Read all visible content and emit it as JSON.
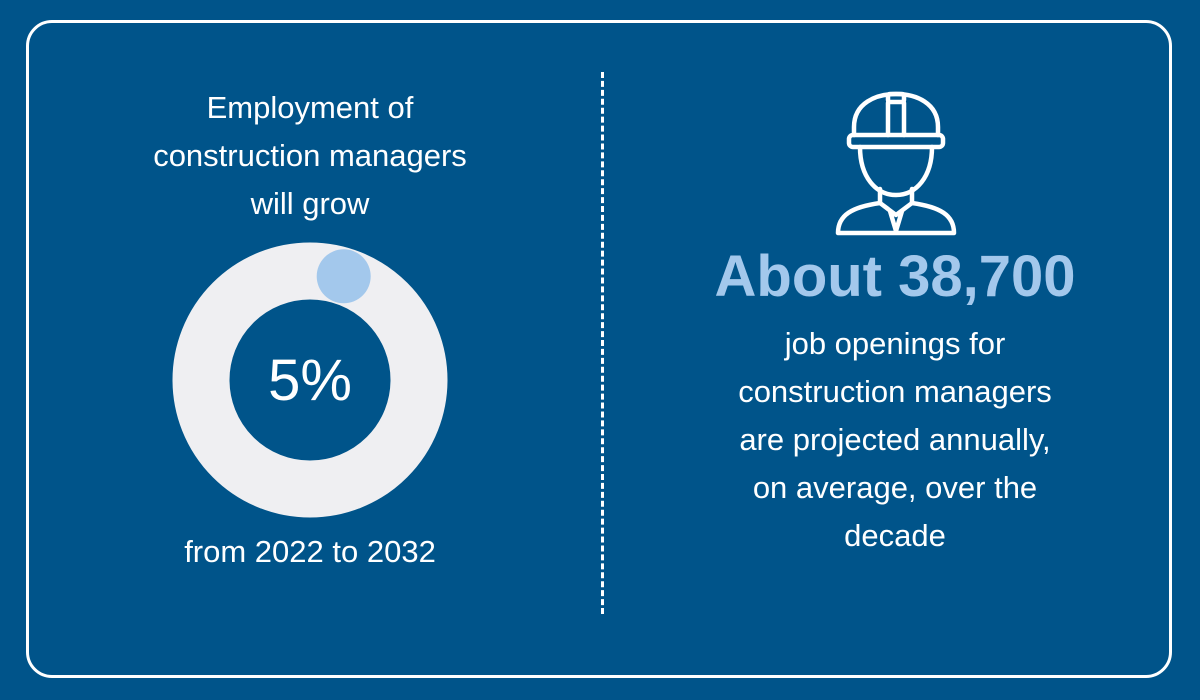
{
  "left_panel": {
    "headline_lines": [
      "Employment of",
      "construction managers",
      "will grow"
    ],
    "growth_percent_label": "5%",
    "growth_value": 5,
    "period": "from 2022 to 2032"
  },
  "right_panel": {
    "icon": "construction-worker-icon",
    "stat": "About 38,700",
    "description_lines": [
      "job openings for",
      "construction managers",
      "are projected annually,",
      "on average, over the",
      "decade"
    ]
  },
  "colors": {
    "background": "#00548a",
    "ring_track": "#efeff2",
    "ring_progress": "#a3c8ec",
    "accent_text": "#a3c8ec",
    "text": "#ffffff"
  }
}
